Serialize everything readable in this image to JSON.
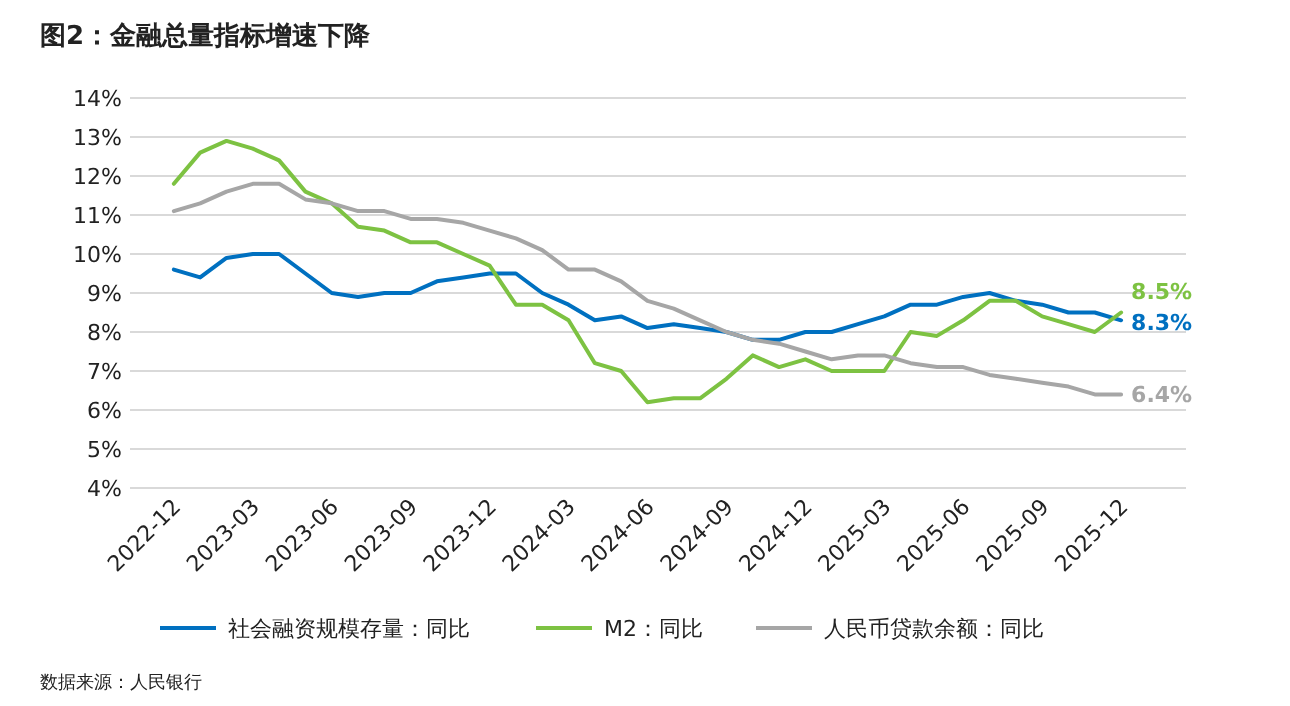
{
  "chart_data": {
    "type": "line",
    "title": "图2：金融总量指标增速下降",
    "x": [
      "2022-12",
      "2023-01",
      "2023-02",
      "2023-03",
      "2023-04",
      "2023-05",
      "2023-06",
      "2023-07",
      "2023-08",
      "2023-09",
      "2023-10",
      "2023-11",
      "2023-12",
      "2024-01",
      "2024-02",
      "2024-03",
      "2024-04",
      "2024-05",
      "2024-06",
      "2024-07",
      "2024-08",
      "2024-09",
      "2024-10",
      "2024-11",
      "2024-12",
      "2025-01",
      "2025-02",
      "2025-03",
      "2025-04",
      "2025-05",
      "2025-06",
      "2025-07",
      "2025-08",
      "2025-09",
      "2025-10",
      "2025-11",
      "2025-12"
    ],
    "series": [
      {
        "name": "社会融资规模存量：同比",
        "color": "#0070c0",
        "values": [
          9.6,
          9.4,
          9.9,
          10.0,
          10.0,
          9.5,
          9.0,
          8.9,
          9.0,
          9.0,
          9.3,
          9.4,
          9.5,
          9.5,
          9.0,
          8.7,
          8.3,
          8.4,
          8.1,
          8.2,
          8.1,
          8.0,
          7.8,
          7.8,
          8.0,
          8.0,
          8.2,
          8.4,
          8.7,
          8.7,
          8.9,
          9.0,
          8.8,
          8.7,
          8.5,
          8.5,
          8.3
        ],
        "value_labels": [
          null,
          null,
          null,
          null,
          null,
          null,
          null,
          null,
          null,
          null,
          null,
          null,
          null,
          null,
          null,
          null,
          null,
          null,
          null,
          null,
          null,
          null,
          null,
          null,
          null,
          null,
          null,
          null,
          null,
          null,
          null,
          null,
          null,
          null,
          null,
          null,
          "8.3%"
        ]
      },
      {
        "name": "M2：同比",
        "color": "#7dc242",
        "values": [
          11.8,
          12.6,
          12.9,
          12.7,
          12.4,
          11.6,
          11.3,
          10.7,
          10.6,
          10.3,
          10.3,
          10.0,
          9.7,
          8.7,
          8.7,
          8.3,
          7.2,
          7.0,
          6.2,
          6.3,
          6.3,
          6.8,
          7.4,
          7.1,
          7.3,
          7.0,
          7.0,
          7.0,
          8.0,
          7.9,
          8.3,
          8.8,
          8.8,
          8.4,
          8.2,
          8.0,
          8.5
        ],
        "value_labels": [
          null,
          null,
          null,
          null,
          null,
          null,
          null,
          null,
          null,
          null,
          null,
          null,
          null,
          null,
          null,
          null,
          null,
          null,
          null,
          null,
          null,
          null,
          null,
          null,
          null,
          null,
          null,
          null,
          null,
          null,
          null,
          null,
          null,
          null,
          null,
          null,
          "8.5%"
        ]
      },
      {
        "name": "人民币贷款余额：同比",
        "color": "#a6a6a6",
        "values": [
          11.1,
          11.3,
          11.6,
          11.8,
          11.8,
          11.4,
          11.3,
          11.1,
          11.1,
          10.9,
          10.9,
          10.8,
          10.6,
          10.4,
          10.1,
          9.6,
          9.6,
          9.3,
          8.8,
          8.6,
          8.3,
          8.0,
          7.8,
          7.7,
          7.5,
          7.3,
          7.4,
          7.4,
          7.2,
          7.1,
          7.1,
          6.9,
          6.8,
          6.7,
          6.6,
          6.4,
          6.4
        ],
        "value_labels": [
          null,
          null,
          null,
          null,
          null,
          null,
          null,
          null,
          null,
          null,
          null,
          null,
          null,
          null,
          null,
          null,
          null,
          null,
          null,
          null,
          null,
          null,
          null,
          null,
          null,
          null,
          null,
          null,
          null,
          null,
          null,
          null,
          null,
          null,
          null,
          null,
          "6.4%"
        ]
      }
    ],
    "xlim": [
      "2022-10-11",
      "2026-02-15"
    ],
    "xticks": [
      "2022-12",
      "2023-03",
      "2023-06",
      "2023-09",
      "2023-12",
      "2024-03",
      "2024-06",
      "2024-09",
      "2024-12",
      "2025-03",
      "2025-06",
      "2025-09",
      "2025-12"
    ],
    "ylim": [
      4,
      14
    ],
    "yticks": [
      {
        "value": 4,
        "label": "4%"
      },
      {
        "value": 5,
        "label": "5%"
      },
      {
        "value": 6,
        "label": "6%"
      },
      {
        "value": 7,
        "label": "7%"
      },
      {
        "value": 8,
        "label": "8%"
      },
      {
        "value": 9,
        "label": "9%"
      },
      {
        "value": 10,
        "label": "10%"
      },
      {
        "value": 11,
        "label": "11%"
      },
      {
        "value": 12,
        "label": "12%"
      },
      {
        "value": 13,
        "label": "13%"
      },
      {
        "value": 14,
        "label": "14%"
      }
    ],
    "grid": "y",
    "legend": "bottom",
    "annotations": [
      "数据来源：人民银行"
    ]
  }
}
